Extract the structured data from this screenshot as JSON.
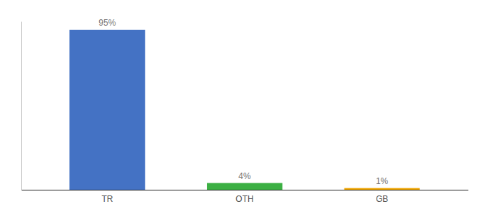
{
  "chart_data": {
    "type": "bar",
    "categories": [
      "TR",
      "OTH",
      "GB"
    ],
    "values": [
      95,
      4,
      1
    ],
    "colors": [
      "#4472c4",
      "#3cb043",
      "#f0a500"
    ],
    "value_labels": [
      "95%",
      "4%",
      "1%"
    ],
    "data_labels": true,
    "ylim": [
      0,
      100
    ],
    "tick_labels": "x"
  }
}
